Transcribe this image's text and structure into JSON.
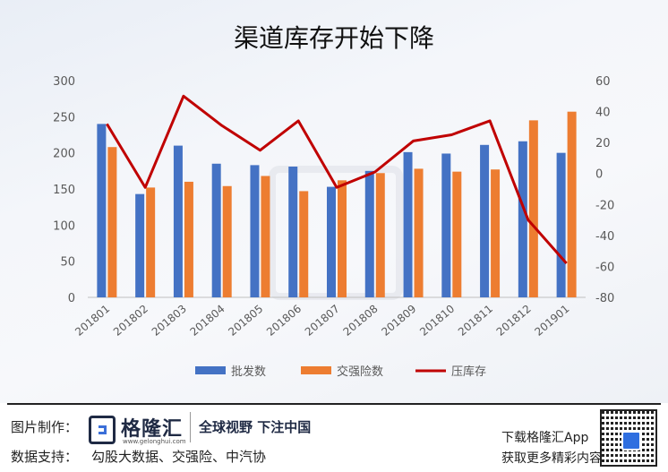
{
  "chart_data": {
    "type": "bar",
    "title": "渠道库存开始下降",
    "categories": [
      "201801",
      "201802",
      "201803",
      "201804",
      "201805",
      "201806",
      "201807",
      "201808",
      "201809",
      "201810",
      "201811",
      "201812",
      "201901"
    ],
    "series": [
      {
        "name": "批发数",
        "type": "bar",
        "axis": "left",
        "color": "#4472c4",
        "values": [
          240,
          143,
          210,
          185,
          183,
          181,
          153,
          175,
          201,
          199,
          211,
          216,
          200
        ]
      },
      {
        "name": "交强险数",
        "type": "bar",
        "axis": "left",
        "color": "#ed7d31",
        "values": [
          208,
          152,
          160,
          154,
          168,
          147,
          162,
          172,
          178,
          174,
          177,
          245,
          257
        ]
      },
      {
        "name": "压库存",
        "type": "line",
        "axis": "right",
        "color": "#c00000",
        "values": [
          32,
          -9,
          50,
          31,
          15,
          34,
          -9,
          1,
          21,
          25,
          34,
          -30,
          -58
        ]
      }
    ],
    "ylim_left": [
      0,
      300
    ],
    "yticks_left": [
      0,
      50,
      100,
      150,
      200,
      250,
      300
    ],
    "ylim_right": [
      -80,
      60
    ],
    "yticks_right": [
      -80,
      -60,
      -40,
      -20,
      0,
      20,
      40,
      60
    ],
    "legend": "bottom",
    "grid": false
  },
  "footer": {
    "made_by_label": "图片制作：",
    "brand_name": "格隆汇",
    "brand_url": "www.gelonghui.com",
    "slogan": "全球视野 下注中国",
    "source_label": "数据支持：",
    "source_text": "勾股大数据、交强险、中汽协",
    "download_text": "下载格隆汇App",
    "more_text": "获取更多精彩内容"
  }
}
